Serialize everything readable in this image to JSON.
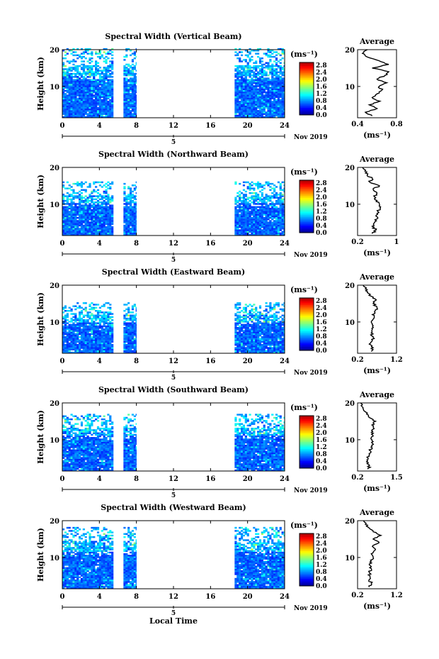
{
  "figure": {
    "shared_xlabel": "Local Time",
    "date_label": "Nov 2019",
    "month_tick_label": "5"
  },
  "chart_data": [
    {
      "type": "heatmap",
      "title": "Spectral Width (Vertical Beam)",
      "ylabel": "Height (km)",
      "xlabel": "",
      "xlim": [
        0,
        24
      ],
      "xticks": [
        0,
        4,
        8,
        12,
        16,
        20,
        24
      ],
      "ylim": [
        1.5,
        20
      ],
      "yticks": [
        10,
        20
      ],
      "colorbar": {
        "unit": "(ms⁻¹)",
        "ticks": [
          "2.8",
          "2.4",
          "2.0",
          "1.6",
          "1.2",
          "0.8",
          "0.4",
          "0.0"
        ],
        "range": [
          0,
          3.0
        ]
      },
      "data_time_ranges": [
        [
          0,
          5.5
        ],
        [
          6.6,
          8.0
        ],
        [
          18.6,
          24
        ]
      ],
      "top_height_km": 20,
      "average_profile": {
        "title": "Average",
        "xlabel": "(ms⁻¹)",
        "xlim": [
          0.4,
          0.8
        ],
        "xticks": [
          0.4,
          0.8
        ],
        "yticks": [
          10,
          20
        ],
        "heights_km": [
          2,
          3,
          4,
          5,
          6,
          7,
          8,
          9,
          10,
          11,
          12,
          13,
          14,
          15,
          16,
          17,
          18,
          19,
          20
        ],
        "values": [
          0.55,
          0.48,
          0.6,
          0.52,
          0.63,
          0.55,
          0.6,
          0.65,
          0.62,
          0.7,
          0.6,
          0.68,
          0.72,
          0.55,
          0.72,
          0.62,
          0.5,
          0.45,
          0.5
        ]
      }
    },
    {
      "type": "heatmap",
      "title": "Spectral Width (Northward Beam)",
      "ylabel": "Height (km)",
      "xlabel": "",
      "xlim": [
        0,
        24
      ],
      "xticks": [
        0,
        4,
        8,
        12,
        16,
        20,
        24
      ],
      "ylim": [
        1.5,
        20
      ],
      "yticks": [
        10,
        20
      ],
      "colorbar": {
        "unit": "(ms⁻¹)",
        "ticks": [
          "2.8",
          "2.4",
          "2.0",
          "1.6",
          "1.2",
          "0.8",
          "0.4",
          "0.0"
        ],
        "range": [
          0,
          3.0
        ]
      },
      "data_time_ranges": [
        [
          0,
          5.5
        ],
        [
          6.6,
          8.0
        ],
        [
          18.6,
          24
        ]
      ],
      "top_height_km": 16,
      "average_profile": {
        "title": "Average",
        "xlabel": "(ms⁻¹)",
        "xlim": [
          0.2,
          1.0
        ],
        "xticks": [
          0.2,
          1.0
        ],
        "yticks": [
          10,
          20
        ],
        "heights_km": [
          2,
          3,
          4,
          5,
          6,
          7,
          8,
          9,
          10,
          11,
          12,
          13,
          14,
          15,
          16,
          17,
          18,
          19,
          20
        ],
        "values": [
          0.5,
          0.58,
          0.5,
          0.55,
          0.6,
          0.58,
          0.62,
          0.66,
          0.65,
          0.6,
          0.55,
          0.6,
          0.52,
          0.65,
          0.45,
          0.5,
          0.4,
          0.35,
          0.3
        ]
      }
    },
    {
      "type": "heatmap",
      "title": "Spectral Width (Eastward Beam)",
      "ylabel": "Height (km)",
      "xlabel": "",
      "xlim": [
        0,
        24
      ],
      "xticks": [
        0,
        4,
        8,
        12,
        16,
        20,
        24
      ],
      "ylim": [
        1.5,
        20
      ],
      "yticks": [
        10,
        20
      ],
      "colorbar": {
        "unit": "(ms⁻¹)",
        "ticks": [
          "2.8",
          "2.4",
          "2.0",
          "1.6",
          "1.2",
          "0.8",
          "0.4",
          "0.0"
        ],
        "range": [
          0,
          3.0
        ]
      },
      "data_time_ranges": [
        [
          0,
          5.5
        ],
        [
          6.6,
          8.0
        ],
        [
          18.6,
          24
        ]
      ],
      "top_height_km": 15,
      "average_profile": {
        "title": "Average",
        "xlabel": "(ms⁻¹)",
        "xlim": [
          0.2,
          1.2
        ],
        "xticks": [
          0.2,
          1.2
        ],
        "yticks": [
          10,
          20
        ],
        "heights_km": [
          2,
          3,
          4,
          5,
          6,
          7,
          8,
          9,
          10,
          11,
          12,
          13,
          14,
          15,
          16,
          17,
          18,
          19,
          20
        ],
        "values": [
          0.55,
          0.6,
          0.5,
          0.58,
          0.6,
          0.55,
          0.58,
          0.6,
          0.55,
          0.62,
          0.58,
          0.65,
          0.7,
          0.6,
          0.68,
          0.55,
          0.45,
          0.4,
          0.35
        ]
      }
    },
    {
      "type": "heatmap",
      "title": "Spectral Width (Southward Beam)",
      "ylabel": "Height (km)",
      "xlabel": "",
      "xlim": [
        0,
        24
      ],
      "xticks": [
        0,
        4,
        8,
        12,
        16,
        20,
        24
      ],
      "ylim": [
        1.5,
        20
      ],
      "yticks": [
        10,
        20
      ],
      "colorbar": {
        "unit": "(ms⁻¹)",
        "ticks": [
          "2.8",
          "2.4",
          "2.0",
          "1.6",
          "1.2",
          "0.8",
          "0.4",
          "0.0"
        ],
        "range": [
          0,
          3.0
        ]
      },
      "data_time_ranges": [
        [
          0,
          5.5
        ],
        [
          6.6,
          8.0
        ],
        [
          18.6,
          24
        ]
      ],
      "top_height_km": 17,
      "average_profile": {
        "title": "Average",
        "xlabel": "(ms⁻¹)",
        "xlim": [
          0.2,
          1.5
        ],
        "xticks": [
          0.2,
          1.5
        ],
        "yticks": [
          10,
          20
        ],
        "heights_km": [
          2,
          3,
          4,
          5,
          6,
          7,
          8,
          9,
          10,
          11,
          12,
          13,
          14,
          15,
          16,
          17,
          18,
          19,
          20
        ],
        "values": [
          0.55,
          0.6,
          0.5,
          0.55,
          0.6,
          0.62,
          0.65,
          0.7,
          0.68,
          0.72,
          0.66,
          0.75,
          0.68,
          0.8,
          0.6,
          0.5,
          0.4,
          0.35,
          0.3
        ]
      }
    },
    {
      "type": "heatmap",
      "title": "Spectral Width (Westward Beam)",
      "ylabel": "Height (km)",
      "xlabel": "Local Time",
      "xlim": [
        0,
        24
      ],
      "xticks": [
        0,
        4,
        8,
        12,
        16,
        20,
        24
      ],
      "ylim": [
        1.5,
        20
      ],
      "yticks": [
        10,
        20
      ],
      "colorbar": {
        "unit": "(ms⁻¹)",
        "ticks": [
          "2.8",
          "2.4",
          "2.0",
          "1.6",
          "1.2",
          "0.8",
          "0.4",
          "0.0"
        ],
        "range": [
          0,
          3.0
        ]
      },
      "data_time_ranges": [
        [
          0,
          5.5
        ],
        [
          6.6,
          8.0
        ],
        [
          18.6,
          24
        ]
      ],
      "top_height_km": 18,
      "average_profile": {
        "title": "Average",
        "xlabel": "(ms⁻¹)",
        "xlim": [
          0.2,
          1.2
        ],
        "xticks": [
          0.2,
          1.2
        ],
        "yticks": [
          10,
          20
        ],
        "heights_km": [
          2,
          3,
          4,
          5,
          6,
          7,
          8,
          9,
          10,
          11,
          12,
          13,
          14,
          15,
          16,
          17,
          18,
          19,
          20
        ],
        "values": [
          0.5,
          0.55,
          0.5,
          0.52,
          0.5,
          0.55,
          0.5,
          0.55,
          0.6,
          0.55,
          0.65,
          0.58,
          0.75,
          0.6,
          0.8,
          0.6,
          0.5,
          0.4,
          0.35
        ]
      }
    }
  ]
}
